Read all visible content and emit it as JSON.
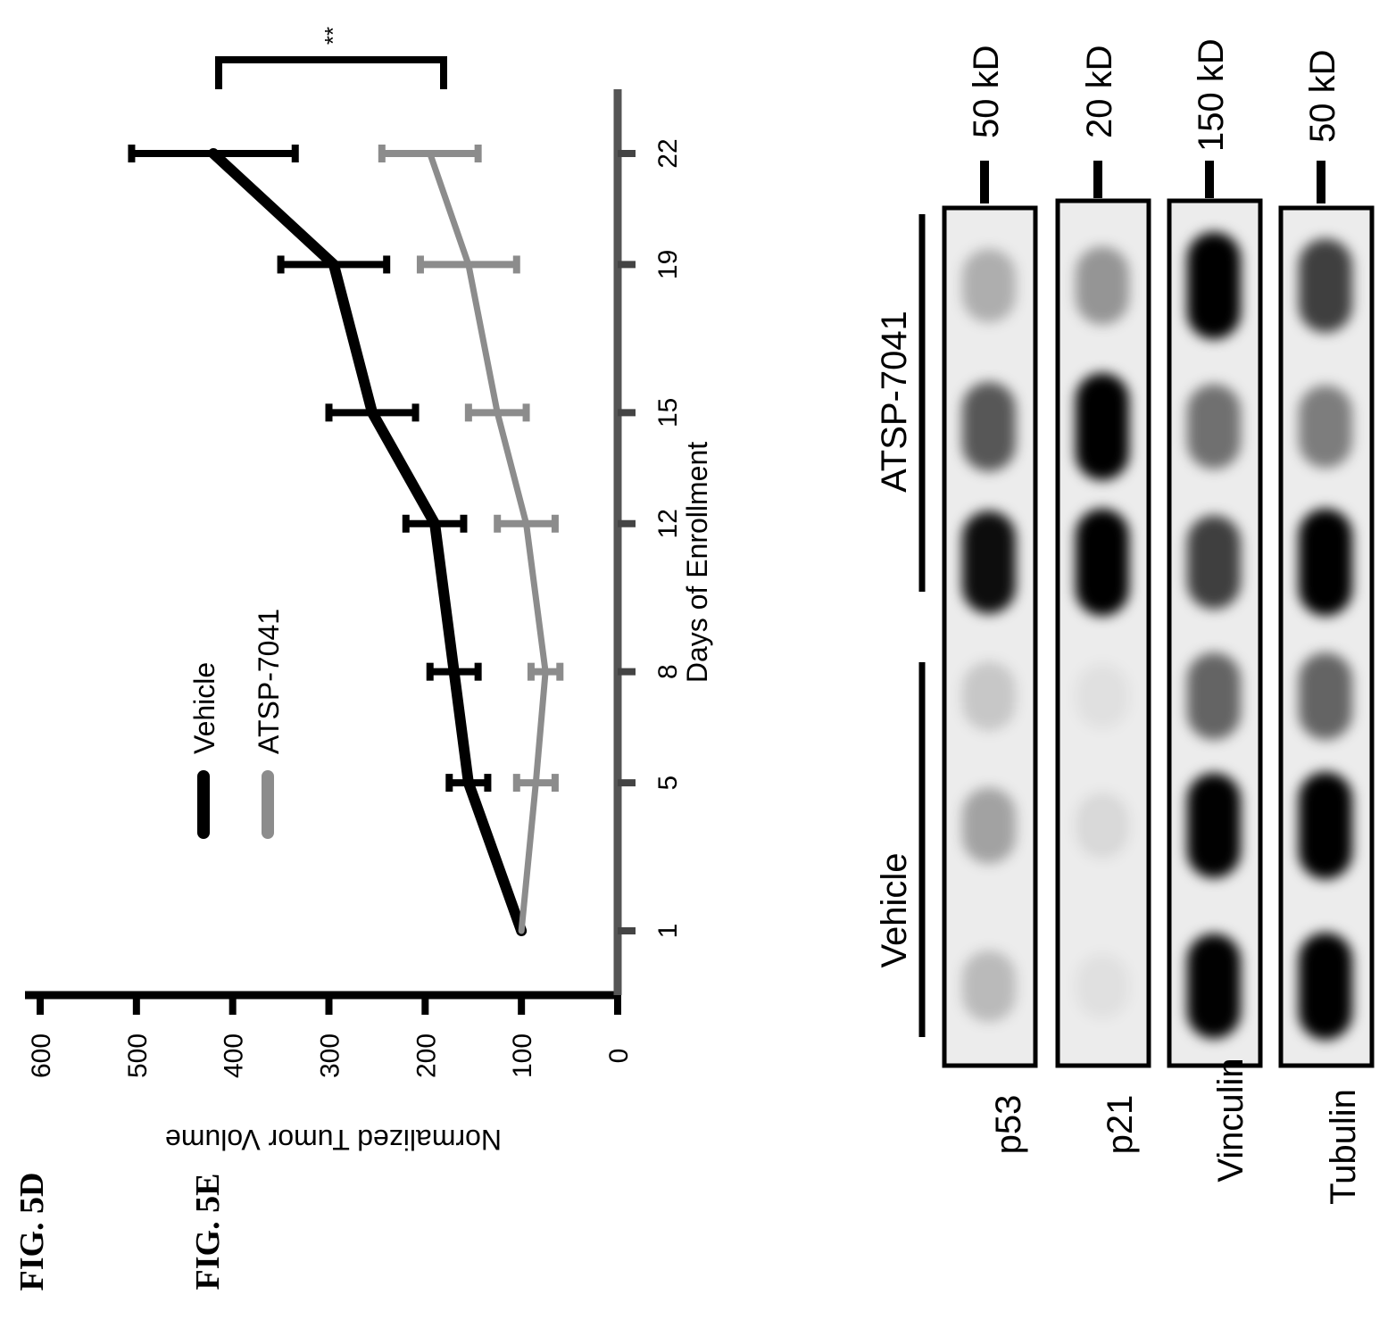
{
  "figure_5d_label": "FIG. 5D",
  "figure_5e_label": "FIG. 5E",
  "chart_data": {
    "type": "line",
    "title": "",
    "xlabel": "Days of Enrollment",
    "ylabel": "Normalized Tumor Volume",
    "x": [
      1,
      5,
      8,
      12,
      15,
      19,
      22
    ],
    "x_tick_labels": [
      "1",
      "5",
      "8",
      "12",
      "15",
      "19",
      "22"
    ],
    "ylim": [
      0,
      600
    ],
    "y_ticks": [
      0,
      100,
      200,
      300,
      400,
      500,
      600
    ],
    "y_tick_labels": [
      "0",
      "100",
      "200",
      "300",
      "400",
      "500",
      "600"
    ],
    "legend_placement": "top-left",
    "orientation": "rotated 90° counter-clockwise",
    "series": [
      {
        "name": "Vehicle",
        "color": "#000000",
        "values": [
          100,
          155,
          170,
          190,
          255,
          295,
          420
        ],
        "errors": [
          0,
          20,
          25,
          30,
          45,
          55,
          85
        ]
      },
      {
        "name": "ATSP-7041",
        "color": "#8c8c8c",
        "values": [
          100,
          85,
          75,
          95,
          125,
          155,
          195
        ],
        "errors": [
          0,
          20,
          15,
          30,
          30,
          50,
          50
        ]
      }
    ],
    "annotation": "**"
  },
  "western_blot": {
    "groups": [
      "Vehicle",
      "ATSP-7041"
    ],
    "rows": [
      {
        "label": "p53",
        "marker": "50 kD",
        "bands": [
          0.2,
          0.3,
          0.15,
          0.9,
          0.6,
          0.25
        ]
      },
      {
        "label": "p21",
        "marker": "20 kD",
        "bands": [
          0.05,
          0.08,
          0.05,
          1.0,
          1.0,
          0.35
        ]
      },
      {
        "label": "Vinculin",
        "marker": "150 kD",
        "bands": [
          0.95,
          0.95,
          0.55,
          0.7,
          0.5,
          1.0
        ]
      },
      {
        "label": "Tubulin",
        "marker": "50 kD",
        "bands": [
          1.0,
          1.0,
          0.55,
          1.0,
          0.45,
          0.7
        ]
      }
    ]
  }
}
